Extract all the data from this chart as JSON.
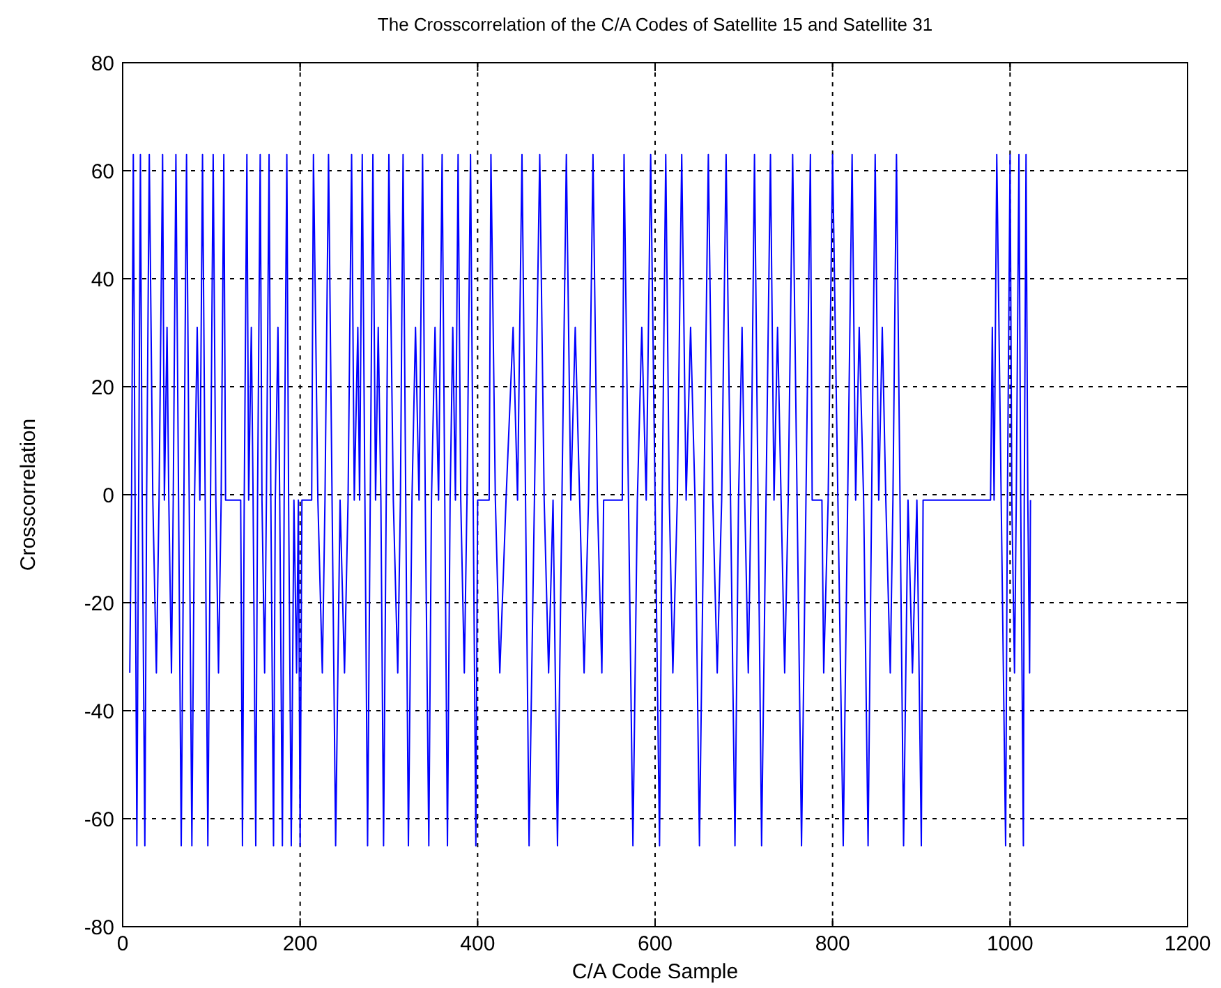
{
  "chart_data": {
    "type": "line",
    "title": "The Crosscorrelation of the C/A Codes of Satellite 15 and Satellite 31",
    "xlabel": "C/A Code Sample",
    "ylabel": "Crosscorrelation",
    "xlim": [
      0,
      1200
    ],
    "xticks": [
      0,
      200,
      400,
      600,
      800,
      1000,
      1200
    ],
    "ylim": [
      -80,
      80
    ],
    "yticks": [
      -80,
      -60,
      -40,
      -20,
      0,
      20,
      40,
      60,
      80
    ],
    "grid": true,
    "line_style": "solid",
    "marker": "none",
    "series": [
      {
        "color": "#0000ff",
        "x": [
          8,
          10,
          12,
          14,
          16,
          18,
          20,
          22,
          25,
          27,
          30,
          34,
          38,
          41,
          45,
          47,
          50,
          52,
          55,
          57,
          60,
          63,
          66,
          69,
          72,
          75,
          78,
          81,
          84,
          87,
          90,
          93,
          96,
          99,
          102,
          105,
          108,
          111,
          114,
          116,
          133,
          135,
          137,
          140,
          142,
          145,
          147,
          150,
          152,
          155,
          157,
          160,
          162,
          165,
          167,
          170,
          172,
          175,
          177,
          180,
          182,
          185,
          187,
          190,
          193,
          196,
          198,
          200,
          202,
          213,
          215,
          220,
          225,
          228,
          232,
          236,
          240,
          245,
          250,
          254,
          258,
          261,
          265,
          267,
          270,
          273,
          276,
          279,
          282,
          285,
          288,
          291,
          294,
          297,
          300,
          305,
          310,
          313,
          316,
          319,
          322,
          326,
          330,
          334,
          338,
          341,
          345,
          348,
          352,
          356,
          360,
          363,
          366,
          369,
          372,
          375,
          378,
          381,
          385,
          388,
          392,
          395,
          398,
          400,
          413,
          415,
          420,
          425,
          432,
          440,
          445,
          450,
          454,
          458,
          464,
          470,
          475,
          480,
          485,
          490,
          495,
          500,
          505,
          510,
          515,
          520,
          525,
          530,
          535,
          540,
          542,
          563,
          565,
          570,
          575,
          580,
          585,
          590,
          595,
          600,
          605,
          608,
          612,
          616,
          620,
          625,
          630,
          635,
          640,
          645,
          650,
          655,
          660,
          665,
          670,
          675,
          680,
          685,
          690,
          694,
          698,
          701,
          705,
          708,
          712,
          716,
          720,
          725,
          730,
          734,
          738,
          742,
          746,
          750,
          755,
          760,
          765,
          770,
          775,
          777,
          788,
          790,
          795,
          800,
          806,
          812,
          817,
          822,
          826,
          830,
          835,
          840,
          844,
          848,
          852,
          856,
          860,
          865,
          868,
          872,
          876,
          880,
          885,
          890,
          895,
          900,
          902,
          978,
          980,
          982,
          985,
          990,
          995,
          997,
          1000,
          1002,
          1005,
          1007,
          1010,
          1012,
          1015,
          1016,
          1018,
          1020,
          1022,
          1023
        ],
        "values": [
          -33,
          -1,
          63,
          -1,
          -65,
          -1,
          63,
          -1,
          -65,
          -1,
          63,
          -1,
          -33,
          -1,
          63,
          -1,
          31,
          -1,
          -33,
          -1,
          63,
          -1,
          -65,
          -1,
          63,
          -1,
          -65,
          -1,
          31,
          -1,
          63,
          -1,
          -65,
          -1,
          63,
          -1,
          -33,
          -1,
          63,
          -1,
          -1,
          -65,
          -1,
          63,
          -1,
          31,
          -1,
          -65,
          -1,
          63,
          -1,
          -33,
          -1,
          63,
          -1,
          -65,
          -1,
          31,
          -1,
          -65,
          -1,
          63,
          -1,
          -65,
          -1,
          -33,
          -1,
          -65,
          -1,
          -1,
          63,
          -1,
          -33,
          -1,
          63,
          -1,
          -65,
          -1,
          -33,
          -1,
          63,
          -1,
          31,
          -1,
          63,
          -1,
          -65,
          -1,
          63,
          -1,
          31,
          -1,
          -65,
          -1,
          63,
          -1,
          -33,
          -1,
          63,
          -1,
          -65,
          -1,
          31,
          -1,
          63,
          -1,
          -65,
          -1,
          31,
          -1,
          63,
          -1,
          -65,
          -1,
          31,
          -1,
          63,
          -1,
          -33,
          -1,
          63,
          -1,
          -65,
          -1,
          -1,
          63,
          -1,
          -33,
          -1,
          31,
          -1,
          63,
          -1,
          -65,
          -1,
          63,
          -1,
          -33,
          -1,
          -65,
          -1,
          63,
          -1,
          31,
          -1,
          -33,
          -1,
          63,
          -1,
          -33,
          -1,
          -1,
          63,
          -1,
          -65,
          -1,
          31,
          -1,
          63,
          -1,
          -65,
          -1,
          63,
          -1,
          -33,
          -1,
          63,
          -1,
          31,
          -1,
          -65,
          -1,
          63,
          -1,
          -33,
          -1,
          63,
          -1,
          -65,
          -1,
          31,
          -1,
          -33,
          -1,
          63,
          -1,
          -65,
          -1,
          63,
          -1,
          31,
          -1,
          -33,
          -1,
          63,
          -1,
          -65,
          -1,
          63,
          -1,
          -1,
          -33,
          -1,
          63,
          -1,
          -65,
          -1,
          63,
          -1,
          31,
          -1,
          -65,
          -1,
          63,
          -1,
          31,
          -1,
          -33,
          -1,
          63,
          -1,
          -65,
          -1,
          -33,
          -1,
          -65,
          -1,
          -1,
          31,
          -1,
          63,
          -1,
          -65,
          -1,
          63,
          -1,
          -33,
          -1,
          63,
          -1,
          -65,
          -1,
          63,
          -1,
          -33,
          -1
        ]
      }
    ]
  }
}
